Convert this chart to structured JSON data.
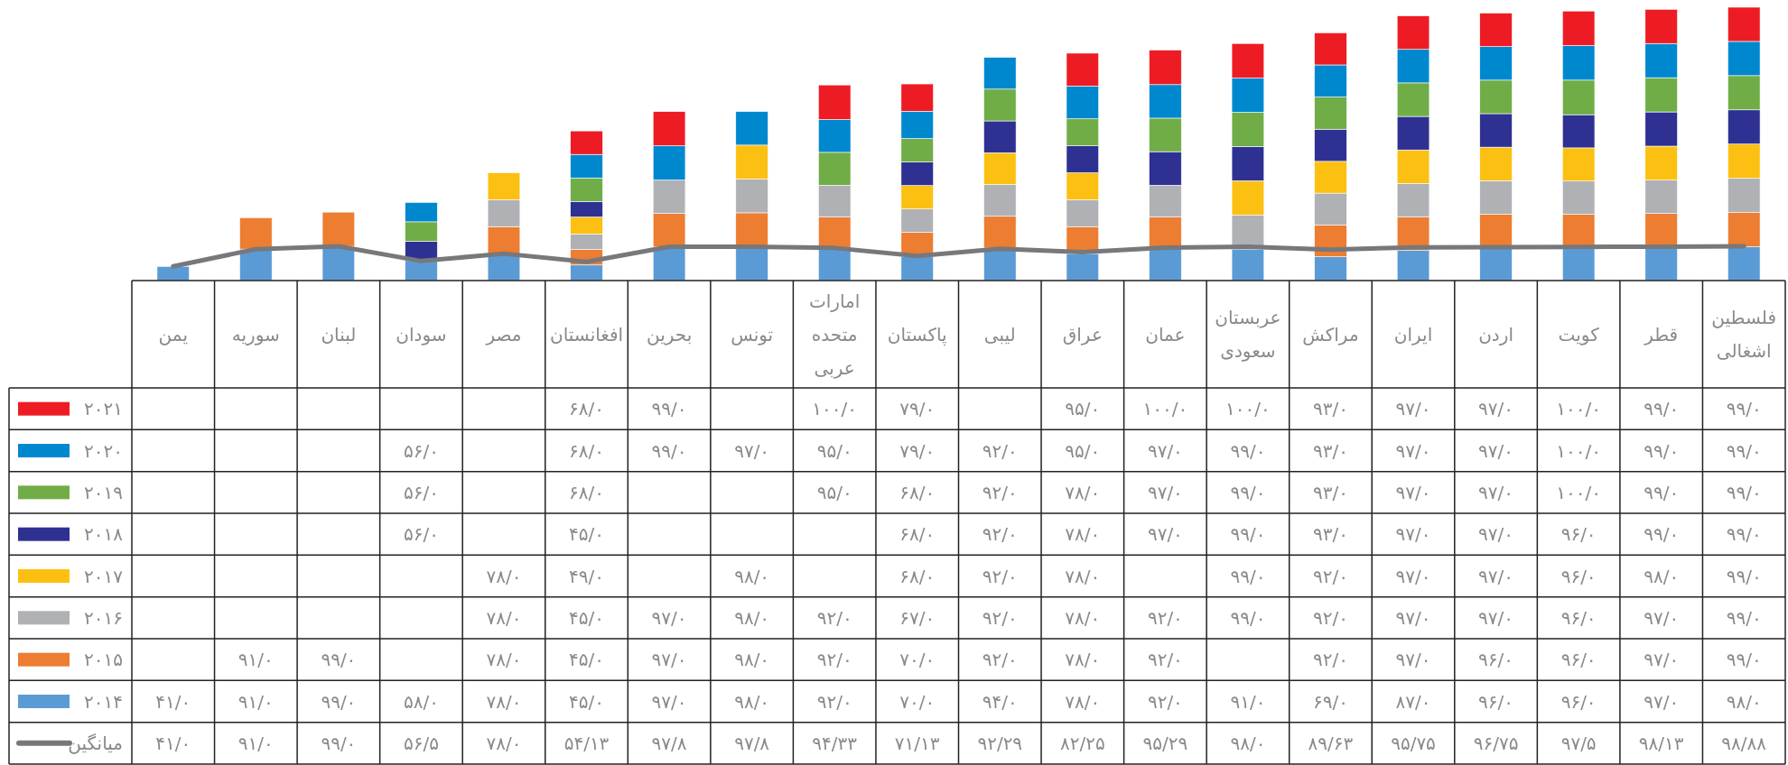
{
  "chart_data": {
    "type": "bar",
    "stacked": true,
    "legend": "bottom left",
    "tick_labels": "x",
    "categories": [
      "یمن",
      "سوریه",
      "لبنان",
      "سودان",
      "مصر",
      "افغانستان",
      "بحرین",
      "تونس",
      "امارات متحده عربی",
      "پاکستان",
      "لیبی",
      "عراق",
      "عمان",
      "عربستان سعودی",
      "مراکش",
      "ایران",
      "اردن",
      "کویت",
      "قطر",
      "فلسطین اشغالی"
    ],
    "series": [
      {
        "name": "۲۰۱۴",
        "color": "#5b9bd5",
        "values": [
          41,
          91,
          99,
          58,
          78,
          45,
          97,
          98,
          92,
          70,
          94,
          78,
          92,
          91,
          69,
          87,
          96,
          96,
          97,
          98
        ],
        "value_labels": [
          "۴۱/۰",
          "۹۱/۰",
          "۹۹/۰",
          "۵۸/۰",
          "۷۸/۰",
          "۴۵/۰",
          "۹۷/۰",
          "۹۸/۰",
          "۹۲/۰",
          "۷۰/۰",
          "۹۴/۰",
          "۷۸/۰",
          "۹۲/۰",
          "۹۱/۰",
          "۶۹/۰",
          "۸۷/۰",
          "۹۶/۰",
          "۹۶/۰",
          "۹۷/۰",
          "۹۸/۰"
        ]
      },
      {
        "name": "۲۰۱۵",
        "color": "#ed7d31",
        "values": [
          null,
          91,
          99,
          null,
          78,
          45,
          97,
          98,
          92,
          70,
          92,
          78,
          92,
          null,
          92,
          97,
          96,
          96,
          97,
          99
        ],
        "value_labels": [
          null,
          "۹۱/۰",
          "۹۹/۰",
          null,
          "۷۸/۰",
          "۴۵/۰",
          "۹۷/۰",
          "۹۸/۰",
          "۹۲/۰",
          "۷۰/۰",
          "۹۲/۰",
          "۷۸/۰",
          "۹۲/۰",
          null,
          "۹۲/۰",
          "۹۷/۰",
          "۹۶/۰",
          "۹۶/۰",
          "۹۷/۰",
          "۹۹/۰"
        ]
      },
      {
        "name": "۲۰۱۶",
        "color": "#b0b1b4",
        "values": [
          null,
          null,
          null,
          null,
          78,
          45,
          97,
          98,
          92,
          67,
          92,
          78,
          92,
          99,
          92,
          97,
          97,
          96,
          97,
          99
        ],
        "value_labels": [
          null,
          null,
          null,
          null,
          "۷۸/۰",
          "۴۵/۰",
          "۹۷/۰",
          "۹۸/۰",
          "۹۲/۰",
          "۶۷/۰",
          "۹۲/۰",
          "۷۸/۰",
          "۹۲/۰",
          "۹۹/۰",
          "۹۲/۰",
          "۹۷/۰",
          "۹۷/۰",
          "۹۶/۰",
          "۹۷/۰",
          "۹۹/۰"
        ]
      },
      {
        "name": "۲۰۱۷",
        "color": "#fcc012",
        "values": [
          null,
          null,
          null,
          null,
          78,
          49,
          null,
          98,
          null,
          68,
          92,
          78,
          null,
          99,
          92,
          97,
          97,
          96,
          98,
          99
        ],
        "value_labels": [
          null,
          null,
          null,
          null,
          "۷۸/۰",
          "۴۹/۰",
          null,
          "۹۸/۰",
          null,
          "۶۸/۰",
          "۹۲/۰",
          "۷۸/۰",
          null,
          "۹۹/۰",
          "۹۲/۰",
          "۹۷/۰",
          "۹۷/۰",
          "۹۶/۰",
          "۹۸/۰",
          "۹۹/۰"
        ]
      },
      {
        "name": "۲۰۱۸",
        "color": "#2e3192",
        "values": [
          null,
          null,
          null,
          56,
          null,
          45,
          null,
          null,
          null,
          68,
          92,
          78,
          97,
          99,
          93,
          97,
          97,
          96,
          99,
          99
        ],
        "value_labels": [
          null,
          null,
          null,
          "۵۶/۰",
          null,
          "۴۵/۰",
          null,
          null,
          null,
          "۶۸/۰",
          "۹۲/۰",
          "۷۸/۰",
          "۹۷/۰",
          "۹۹/۰",
          "۹۳/۰",
          "۹۷/۰",
          "۹۷/۰",
          "۹۶/۰",
          "۹۹/۰",
          "۹۹/۰"
        ]
      },
      {
        "name": "۲۰۱۹",
        "color": "#70ad47",
        "values": [
          null,
          null,
          null,
          56,
          null,
          68,
          null,
          null,
          95,
          68,
          92,
          78,
          97,
          99,
          93,
          97,
          97,
          100,
          99,
          99
        ],
        "value_labels": [
          null,
          null,
          null,
          "۵۶/۰",
          null,
          "۶۸/۰",
          null,
          null,
          "۹۵/۰",
          "۶۸/۰",
          "۹۲/۰",
          "۷۸/۰",
          "۹۷/۰",
          "۹۹/۰",
          "۹۳/۰",
          "۹۷/۰",
          "۹۷/۰",
          "۱۰۰/۰",
          "۹۹/۰",
          "۹۹/۰"
        ]
      },
      {
        "name": "۲۰۲۰",
        "color": "#0088cf",
        "values": [
          null,
          null,
          null,
          56,
          null,
          68,
          99,
          97,
          95,
          79,
          92,
          95,
          97,
          99,
          93,
          97,
          97,
          100,
          99,
          99
        ],
        "value_labels": [
          null,
          null,
          null,
          "۵۶/۰",
          null,
          "۶۸/۰",
          "۹۹/۰",
          "۹۷/۰",
          "۹۵/۰",
          "۷۹/۰",
          "۹۲/۰",
          "۹۵/۰",
          "۹۷/۰",
          "۹۹/۰",
          "۹۳/۰",
          "۹۷/۰",
          "۹۷/۰",
          "۱۰۰/۰",
          "۹۹/۰",
          "۹۹/۰"
        ]
      },
      {
        "name": "۲۰۲۱",
        "color": "#ed1c24",
        "values": [
          null,
          null,
          null,
          null,
          null,
          68,
          99,
          null,
          100,
          79,
          null,
          95,
          100,
          100,
          93,
          97,
          97,
          100,
          99,
          99
        ],
        "value_labels": [
          null,
          null,
          null,
          null,
          null,
          "۶۸/۰",
          "۹۹/۰",
          null,
          "۱۰۰/۰",
          "۷۹/۰",
          null,
          "۹۵/۰",
          "۱۰۰/۰",
          "۱۰۰/۰",
          "۹۳/۰",
          "۹۷/۰",
          "۹۷/۰",
          "۱۰۰/۰",
          "۹۹/۰",
          "۹۹/۰"
        ]
      },
      {
        "name": "میانگین",
        "type": "line",
        "color": "#77787b",
        "values": [
          41,
          91,
          99,
          56.5,
          78,
          54.13,
          97.8,
          97.8,
          94.33,
          71.13,
          92.29,
          82.25,
          95.29,
          98,
          89.63,
          95.75,
          96.75,
          97.5,
          98.13,
          98.88
        ],
        "value_labels": [
          "۴۱/۰",
          "۹۱/۰",
          "۹۹/۰",
          "۵۶/۵",
          "۷۸/۰",
          "۵۴/۱۳",
          "۹۷/۸",
          "۹۷/۸",
          "۹۴/۳۳",
          "۷۱/۱۳",
          "۹۲/۲۹",
          "۸۲/۲۵",
          "۹۵/۲۹",
          "۹۸/۰",
          "۸۹/۶۳",
          "۹۵/۷۵",
          "۹۶/۷۵",
          "۹۷/۵",
          "۹۸/۱۳",
          "۹۸/۸۸"
        ]
      }
    ]
  }
}
